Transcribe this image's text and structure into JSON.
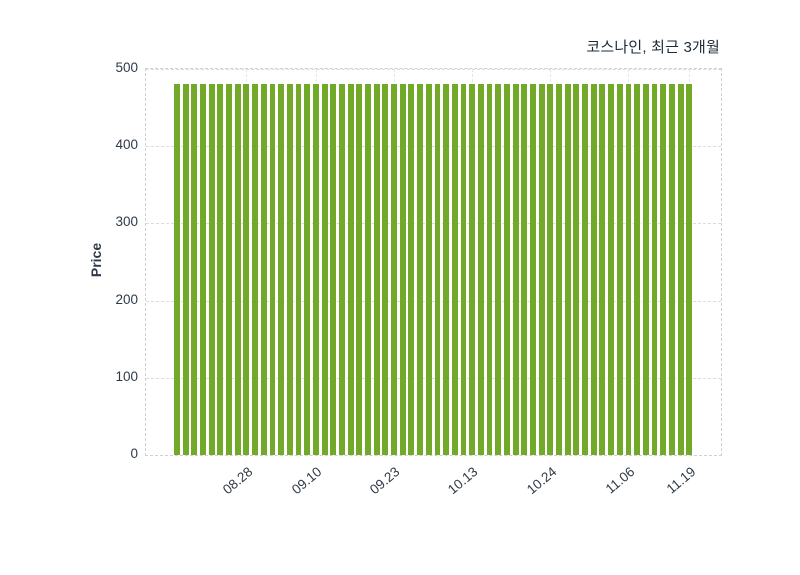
{
  "chart_data": {
    "type": "bar",
    "title": "코스나인, 최근 3개월",
    "ylabel": "Price",
    "xlabel": "",
    "ylim": [
      0,
      500
    ],
    "yticks": [
      0,
      100,
      200,
      300,
      400,
      500
    ],
    "xtick_labels": [
      "08.28",
      "09.10",
      "09.23",
      "10.13",
      "10.24",
      "11.06",
      "11.19"
    ],
    "xtick_bar_indices": [
      8,
      16,
      25,
      34,
      43,
      52,
      59
    ],
    "bar_color": "#72a928",
    "grid": true,
    "legend_position": "none",
    "values": [
      480,
      480,
      480,
      480,
      480,
      480,
      480,
      480,
      480,
      480,
      480,
      480,
      480,
      480,
      480,
      480,
      480,
      480,
      480,
      480,
      480,
      480,
      480,
      480,
      480,
      480,
      480,
      480,
      480,
      480,
      480,
      480,
      480,
      480,
      480,
      480,
      480,
      480,
      480,
      480,
      480,
      480,
      480,
      480,
      480,
      480,
      480,
      480,
      480,
      480,
      480,
      480,
      480,
      480,
      480,
      480,
      480,
      480,
      480,
      480
    ]
  },
  "colors": {
    "title_text": "#1c2b3a",
    "tick_text": "#2e3a48",
    "gridline": "#d8dce2",
    "plot_border": "#ccd1d9",
    "background": "#ffffff"
  }
}
